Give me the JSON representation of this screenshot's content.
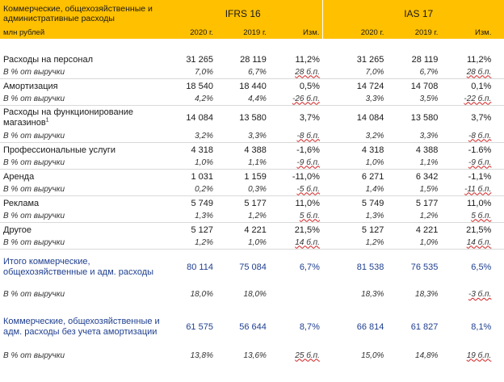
{
  "header": {
    "title_line1": "Коммерческие, общехозяйственные и",
    "title_line2": "административные расходы",
    "std_left": "IFRS 16",
    "std_right": "IAS 17",
    "unit": "млн рублей",
    "col_2020": "2020 г.",
    "col_2019": "2019 г.",
    "col_chg": "Изм."
  },
  "rows": {
    "personnel": {
      "label": "Расходы на персонал",
      "ifrs": [
        "31 265",
        "28 119",
        "11,2%"
      ],
      "ias": [
        "31 265",
        "28 119",
        "11,2%"
      ]
    },
    "personnel_pct": {
      "label": "В % от выручки",
      "ifrs": [
        "7,0%",
        "6,7%",
        "28 б.п."
      ],
      "ias": [
        "7,0%",
        "6,7%",
        "28 б.п."
      ]
    },
    "amort": {
      "label": "Амортизация",
      "ifrs": [
        "18 540",
        "18 440",
        "0,5%"
      ],
      "ias": [
        "14 724",
        "14 708",
        "0,1%"
      ]
    },
    "amort_pct": {
      "label": "В % от выручки",
      "ifrs": [
        "4,2%",
        "4,4%",
        "-26 б.п."
      ],
      "ias": [
        "3,3%",
        "3,5%",
        "-22 б.п."
      ]
    },
    "stores": {
      "label": "Расходы на функционирование магазинов",
      "sup": "1",
      "ifrs": [
        "14 084",
        "13 580",
        "3,7%"
      ],
      "ias": [
        "14 084",
        "13 580",
        "3,7%"
      ]
    },
    "stores_pct": {
      "label": "В % от выручки",
      "ifrs": [
        "3,2%",
        "3,3%",
        "-8 б.п."
      ],
      "ias": [
        "3,2%",
        "3,3%",
        "-8 б.п."
      ]
    },
    "prof": {
      "label": "Профессиональные услуги",
      "ifrs": [
        "4 318",
        "4 388",
        "-1,6%"
      ],
      "ias": [
        "4 318",
        "4 388",
        "-1.6%"
      ]
    },
    "prof_pct": {
      "label": "В % от выручки",
      "ifrs": [
        "1,0%",
        "1,1%",
        "-9 б.п."
      ],
      "ias": [
        "1,0%",
        "1,1%",
        "-9 б.п."
      ]
    },
    "rent": {
      "label": "Аренда",
      "ifrs": [
        "1 031",
        "1 159",
        "-11,0%"
      ],
      "ias": [
        "6 271",
        "6 342",
        "-1,1%"
      ]
    },
    "rent_pct": {
      "label": "В % от выручки",
      "ifrs": [
        "0,2%",
        "0,3%",
        "-5 б.п."
      ],
      "ias": [
        "1,4%",
        "1,5%",
        "-11 б.п."
      ]
    },
    "ads": {
      "label": "Реклама",
      "ifrs": [
        "5 749",
        "5 177",
        "11,0%"
      ],
      "ias": [
        "5 749",
        "5 177",
        "11,0%"
      ]
    },
    "ads_pct": {
      "label": "В % от выручки",
      "ifrs": [
        "1,3%",
        "1,2%",
        "5 б.п."
      ],
      "ias": [
        "1,3%",
        "1,2%",
        "5 б.п."
      ]
    },
    "other": {
      "label": "Другое",
      "ifrs": [
        "5 127",
        "4 221",
        "21,5%"
      ],
      "ias": [
        "5 127",
        "4 221",
        "21,5%"
      ]
    },
    "other_pct": {
      "label": "В % от выручки",
      "ifrs": [
        "1,2%",
        "1,0%",
        "14 б.п."
      ],
      "ias": [
        "1,2%",
        "1,0%",
        "14 б.п."
      ]
    },
    "total": {
      "label": "Итого коммерческие, общехозяйственные и адм. расходы",
      "ifrs": [
        "80 114",
        "75 084",
        "6,7%"
      ],
      "ias": [
        "81 538",
        "76 535",
        "6,5%"
      ]
    },
    "total_pct": {
      "label": "В % от выручки",
      "ifrs": [
        "18,0%",
        "18,0%",
        ""
      ],
      "ias": [
        "18,3%",
        "18,3%",
        "-3 б.п."
      ]
    },
    "total_ex": {
      "label": "Коммерческие, общехозяйственные и адм. расходы без учета амортизации",
      "ifrs": [
        "61 575",
        "56 644",
        "8,7%"
      ],
      "ias": [
        "66 814",
        "61 827",
        "8,1%"
      ]
    },
    "total_ex_pct": {
      "label": "В % от выручки",
      "ifrs": [
        "13,8%",
        "13,6%",
        "25 б.п."
      ],
      "ias": [
        "15,0%",
        "14,8%",
        "19 б.п."
      ]
    }
  }
}
